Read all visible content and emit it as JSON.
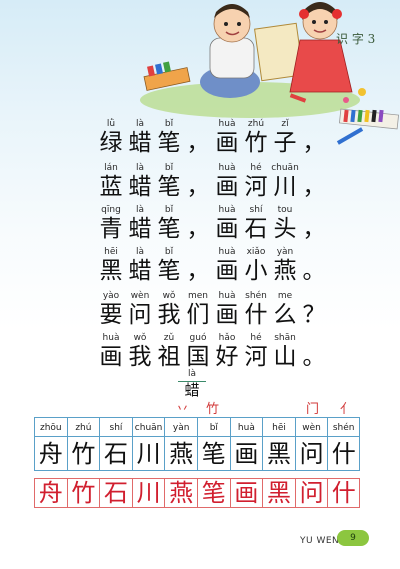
{
  "header": {
    "lesson_label": "识 字 3"
  },
  "verse": [
    [
      {
        "py": "lǜ",
        "hz": "绿"
      },
      {
        "py": "là",
        "hz": "蜡"
      },
      {
        "py": "bǐ",
        "hz": "笔"
      },
      {
        "py": "",
        "hz": "，"
      },
      {
        "py": "huà",
        "hz": "画"
      },
      {
        "py": "zhú",
        "hz": "竹"
      },
      {
        "py": "zǐ",
        "hz": "子"
      },
      {
        "py": "",
        "hz": "，"
      }
    ],
    [
      {
        "py": "lán",
        "hz": "蓝"
      },
      {
        "py": "là",
        "hz": "蜡"
      },
      {
        "py": "bǐ",
        "hz": "笔"
      },
      {
        "py": "",
        "hz": "，"
      },
      {
        "py": "huà",
        "hz": "画"
      },
      {
        "py": "hé",
        "hz": "河"
      },
      {
        "py": "chuān",
        "hz": "川"
      },
      {
        "py": "",
        "hz": "，"
      }
    ],
    [
      {
        "py": "qīng",
        "hz": "青"
      },
      {
        "py": "là",
        "hz": "蜡"
      },
      {
        "py": "bǐ",
        "hz": "笔"
      },
      {
        "py": "",
        "hz": "，"
      },
      {
        "py": "huà",
        "hz": "画"
      },
      {
        "py": "shí",
        "hz": "石"
      },
      {
        "py": "tou",
        "hz": "头"
      },
      {
        "py": "",
        "hz": "，"
      }
    ],
    [
      {
        "py": "hēi",
        "hz": "黑"
      },
      {
        "py": "là",
        "hz": "蜡"
      },
      {
        "py": "bǐ",
        "hz": "笔"
      },
      {
        "py": "",
        "hz": "，"
      },
      {
        "py": "huà",
        "hz": "画"
      },
      {
        "py": "xiǎo",
        "hz": "小"
      },
      {
        "py": "yàn",
        "hz": "燕"
      },
      {
        "py": "",
        "hz": "。"
      }
    ],
    [
      {
        "py": "yào",
        "hz": "要"
      },
      {
        "py": "wèn",
        "hz": "问"
      },
      {
        "py": "wǒ",
        "hz": "我"
      },
      {
        "py": "men",
        "hz": "们"
      },
      {
        "py": "huà",
        "hz": "画"
      },
      {
        "py": "shén",
        "hz": "什"
      },
      {
        "py": "me",
        "hz": "么"
      },
      {
        "py": "",
        "hz": "？"
      }
    ],
    [
      {
        "py": "huà",
        "hz": "画"
      },
      {
        "py": "wǒ",
        "hz": "我"
      },
      {
        "py": "zǔ",
        "hz": "祖"
      },
      {
        "py": "guó",
        "hz": "国"
      },
      {
        "py": "hǎo",
        "hz": "好"
      },
      {
        "py": "hé",
        "hz": "河"
      },
      {
        "py": "shān",
        "hz": "山"
      },
      {
        "py": "",
        "hz": "。"
      }
    ]
  ],
  "new_char": {
    "py": "là",
    "hz": "蜡"
  },
  "red_hints": [
    "丷",
    "竹",
    "门",
    "亻"
  ],
  "writing_grid": {
    "pinyin": [
      "zhōu",
      "zhú",
      "shí",
      "chuān",
      "yàn",
      "bǐ",
      "huà",
      "hēi",
      "wèn",
      "shén"
    ],
    "chars": [
      "舟",
      "竹",
      "石",
      "川",
      "燕",
      "笔",
      "画",
      "黑",
      "问",
      "什"
    ]
  },
  "copy_row": [
    "舟",
    "竹",
    "石",
    "川",
    "燕",
    "笔",
    "画",
    "黑",
    "问",
    "什"
  ],
  "footer": {
    "text": "YU WEN",
    "page_number": "9"
  },
  "colors": {
    "grid_line": "#5aa0c8",
    "copy_red": "#d11f2f",
    "badge_green": "#8cc63f"
  }
}
